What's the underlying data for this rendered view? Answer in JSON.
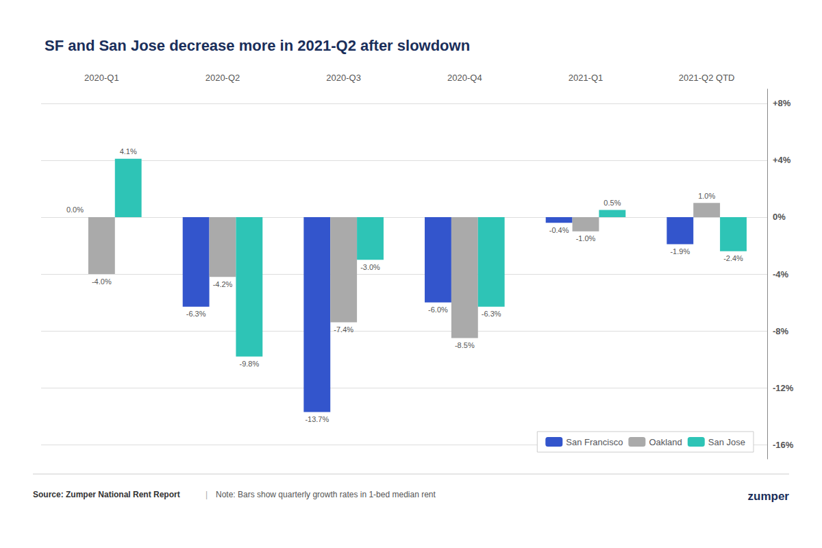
{
  "chart_data": {
    "type": "bar",
    "title": "SF and San Jose decrease more in 2021-Q2 after slowdown",
    "categories": [
      "2020-Q1",
      "2020-Q2",
      "2020-Q3",
      "2020-Q4",
      "2021-Q1",
      "2021-Q2 QTD"
    ],
    "series": [
      {
        "name": "San Francisco",
        "color": "#3355cc",
        "values": [
          0.0,
          -6.3,
          -13.7,
          -6.0,
          -0.4,
          -1.9
        ],
        "value_labels": [
          "0.0%",
          "-6.3%",
          "-13.7%",
          "-6.0%",
          "-0.4%",
          "-1.9%"
        ]
      },
      {
        "name": "Oakland",
        "color": "#aaaaaa",
        "values": [
          -4.0,
          -4.2,
          -7.4,
          -8.5,
          -1.0,
          1.0
        ],
        "value_labels": [
          "-4.0%",
          "-4.2%",
          "-7.4%",
          "-8.5%",
          "-1.0%",
          "1.0%"
        ]
      },
      {
        "name": "San Jose",
        "color": "#2ec4b6",
        "values": [
          4.1,
          -9.8,
          -3.0,
          -6.3,
          0.5,
          -2.4
        ],
        "value_labels": [
          "4.1%",
          "-9.8%",
          "-3.0%",
          "-6.3%",
          "0.5%",
          "-2.4%"
        ]
      }
    ],
    "ylim": [
      -17,
      9
    ],
    "yticks": [
      {
        "value": -16,
        "label": "-16%"
      },
      {
        "value": -12,
        "label": "-12%"
      },
      {
        "value": -8,
        "label": "-8%"
      },
      {
        "value": -4,
        "label": "-4%"
      },
      {
        "value": 0,
        "label": "0%"
      },
      {
        "value": 4,
        "label": "+4%"
      },
      {
        "value": 8,
        "label": "+8%"
      }
    ],
    "grid": true,
    "legend": "lower right",
    "data_labels": true,
    "annotations": [
      "Source: Zumper National Rent Report",
      "|",
      "Note: Bars show quarterly growth rates in 1-bed median rent",
      "zumper"
    ]
  }
}
